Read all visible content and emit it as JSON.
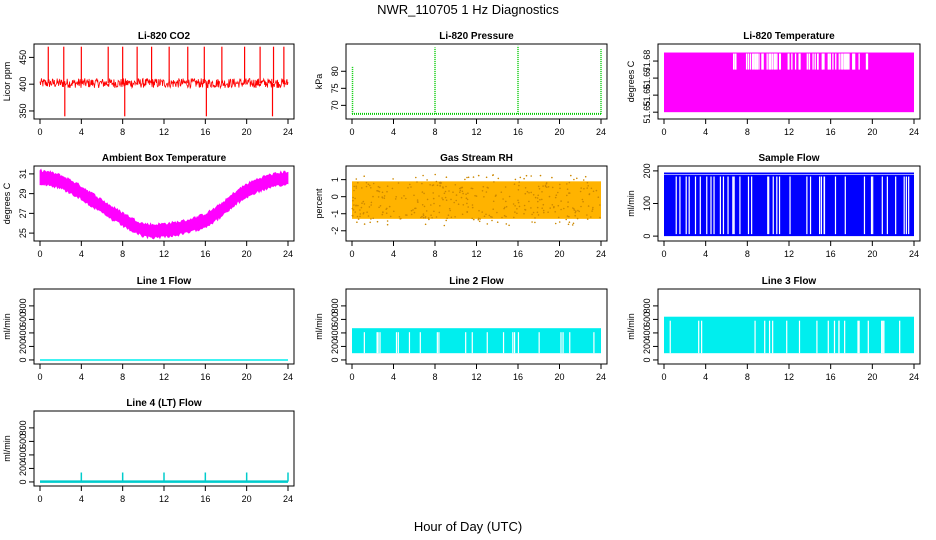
{
  "page": {
    "title": "NWR_110705  1 Hz Diagnostics",
    "xlabel": "Hour of Day (UTC)"
  },
  "chart_data": [
    {
      "type": "line",
      "title": "Li-820 CO2",
      "ylabel": "Licor ppm",
      "color": "#ff0000",
      "xlim": [
        0,
        24
      ],
      "xticks": [
        0,
        4,
        8,
        12,
        16,
        20,
        24
      ],
      "ylim": [
        335,
        475
      ],
      "yticks": [
        350,
        400,
        450
      ],
      "series": [
        {
          "x": [
            0,
            24
          ],
          "baseline": 402,
          "noise": 9,
          "spikes_up": [
            0.8,
            2.3,
            4.0,
            6.6,
            8.0,
            9.4,
            10.8,
            12.5,
            14.3,
            15.9,
            17.6,
            19.8,
            21.3,
            22.6,
            23.6
          ],
          "spike_top": 470,
          "spikes_down": [
            2.4,
            8.2,
            16.1,
            22.5
          ],
          "spike_bottom": 340
        }
      ]
    },
    {
      "type": "line",
      "title": "Li-820 Pressure",
      "ylabel": "kPa",
      "color": "#00cc00",
      "xlim": [
        0,
        24
      ],
      "xticks": [
        0,
        4,
        8,
        12,
        16,
        20,
        24
      ],
      "ylim": [
        66,
        88
      ],
      "yticks": [
        70,
        75,
        80
      ],
      "series": [
        {
          "x": [
            0,
            24
          ],
          "baseline": 67.5,
          "spikes_up": [
            0.05,
            8.0,
            16.0,
            24.0
          ],
          "spike_tops": [
            81.5,
            87,
            87.5,
            86.5
          ]
        }
      ]
    },
    {
      "type": "area",
      "title": "Li-820 Temperature",
      "ylabel": "degrees C",
      "color": "#ff00ff",
      "xlim": [
        0,
        24
      ],
      "xticks": [
        0,
        4,
        8,
        12,
        16,
        20,
        24
      ],
      "ylim": [
        51.646,
        51.69
      ],
      "yticks": [
        51.65,
        51.66,
        51.67,
        51.68
      ],
      "series": [
        {
          "low": 51.65,
          "high": 51.685,
          "mid": 51.675,
          "gap_region": [
            6.5,
            19.5
          ]
        }
      ]
    },
    {
      "type": "line",
      "title": "Ambient Box Temperature",
      "ylabel": "degrees C",
      "color": "#ff00ff",
      "xlim": [
        0,
        24
      ],
      "xticks": [
        0,
        4,
        8,
        12,
        16,
        20,
        24
      ],
      "ylim": [
        24.2,
        31.8
      ],
      "yticks": [
        25,
        27,
        29,
        31
      ],
      "series": [
        {
          "x": [
            0,
            1,
            2,
            3,
            4,
            5,
            6,
            7,
            8,
            9,
            10,
            11,
            12,
            13,
            14,
            15,
            16,
            17,
            18,
            19,
            20,
            21,
            22,
            23,
            24
          ],
          "y": [
            30.7,
            30.5,
            30.2,
            29.7,
            29.1,
            28.4,
            27.7,
            27.0,
            26.4,
            25.8,
            25.3,
            25.2,
            25.3,
            25.4,
            25.6,
            25.9,
            26.3,
            26.9,
            27.7,
            28.6,
            29.3,
            29.8,
            30.2,
            30.4,
            30.6
          ],
          "spread": 0.8
        }
      ]
    },
    {
      "type": "scatter",
      "title": "Gas Stream RH",
      "ylabel": "percent",
      "color": "#cc8800",
      "color2": "#ffb300",
      "xlim": [
        0,
        24
      ],
      "xticks": [
        0,
        4,
        8,
        12,
        16,
        20,
        24
      ],
      "ylim": [
        -2.6,
        1.8
      ],
      "yticks": [
        -2,
        -1,
        0,
        1
      ],
      "series": [
        {
          "center": -0.2,
          "spread": 2.2
        }
      ]
    },
    {
      "type": "area",
      "title": "Sample Flow",
      "ylabel": "ml/min",
      "color": "#0000ff",
      "xlim": [
        0,
        24
      ],
      "xticks": [
        0,
        4,
        8,
        12,
        16,
        20,
        24
      ],
      "ylim": [
        -15,
        215
      ],
      "yticks": [
        0,
        100,
        200
      ],
      "series": [
        {
          "low": 0,
          "high": 195
        }
      ]
    },
    {
      "type": "line",
      "title": "Line 1 Flow",
      "ylabel": "ml/min",
      "color": "#00eeee",
      "xlim": [
        0,
        24
      ],
      "xticks": [
        0,
        4,
        8,
        12,
        16,
        20,
        24
      ],
      "ylim": [
        -60,
        1050
      ],
      "yticks": [
        0,
        200,
        400,
        600,
        800
      ],
      "series": [
        {
          "baseline": 0
        }
      ]
    },
    {
      "type": "area",
      "title": "Line 2 Flow",
      "ylabel": "ml/min",
      "color": "#00eeee",
      "xlim": [
        0,
        24
      ],
      "xticks": [
        0,
        4,
        8,
        12,
        16,
        20,
        24
      ],
      "ylim": [
        -60,
        1050
      ],
      "yticks": [
        0,
        200,
        400,
        600,
        800
      ],
      "series": [
        {
          "low": 100,
          "high": 470
        }
      ]
    },
    {
      "type": "area",
      "title": "Line 3 Flow",
      "ylabel": "ml/min",
      "color": "#00eeee",
      "xlim": [
        0,
        24
      ],
      "xticks": [
        0,
        4,
        8,
        12,
        16,
        20,
        24
      ],
      "ylim": [
        -60,
        1050
      ],
      "yticks": [
        0,
        200,
        400,
        600,
        800
      ],
      "series": [
        {
          "low": 100,
          "high": 640
        }
      ]
    },
    {
      "type": "line",
      "title": "Line 4 (LT) Flow",
      "ylabel": "ml/min",
      "color": "#00cccc",
      "xlim": [
        0,
        24
      ],
      "xticks": [
        0,
        4,
        8,
        12,
        16,
        20,
        24
      ],
      "ylim": [
        -60,
        1050
      ],
      "yticks": [
        0,
        200,
        400,
        600,
        800
      ],
      "series": [
        {
          "baseline": 5,
          "spikes_up": [
            4,
            8,
            12,
            16,
            20,
            24
          ],
          "spike_top": 140
        }
      ]
    }
  ]
}
